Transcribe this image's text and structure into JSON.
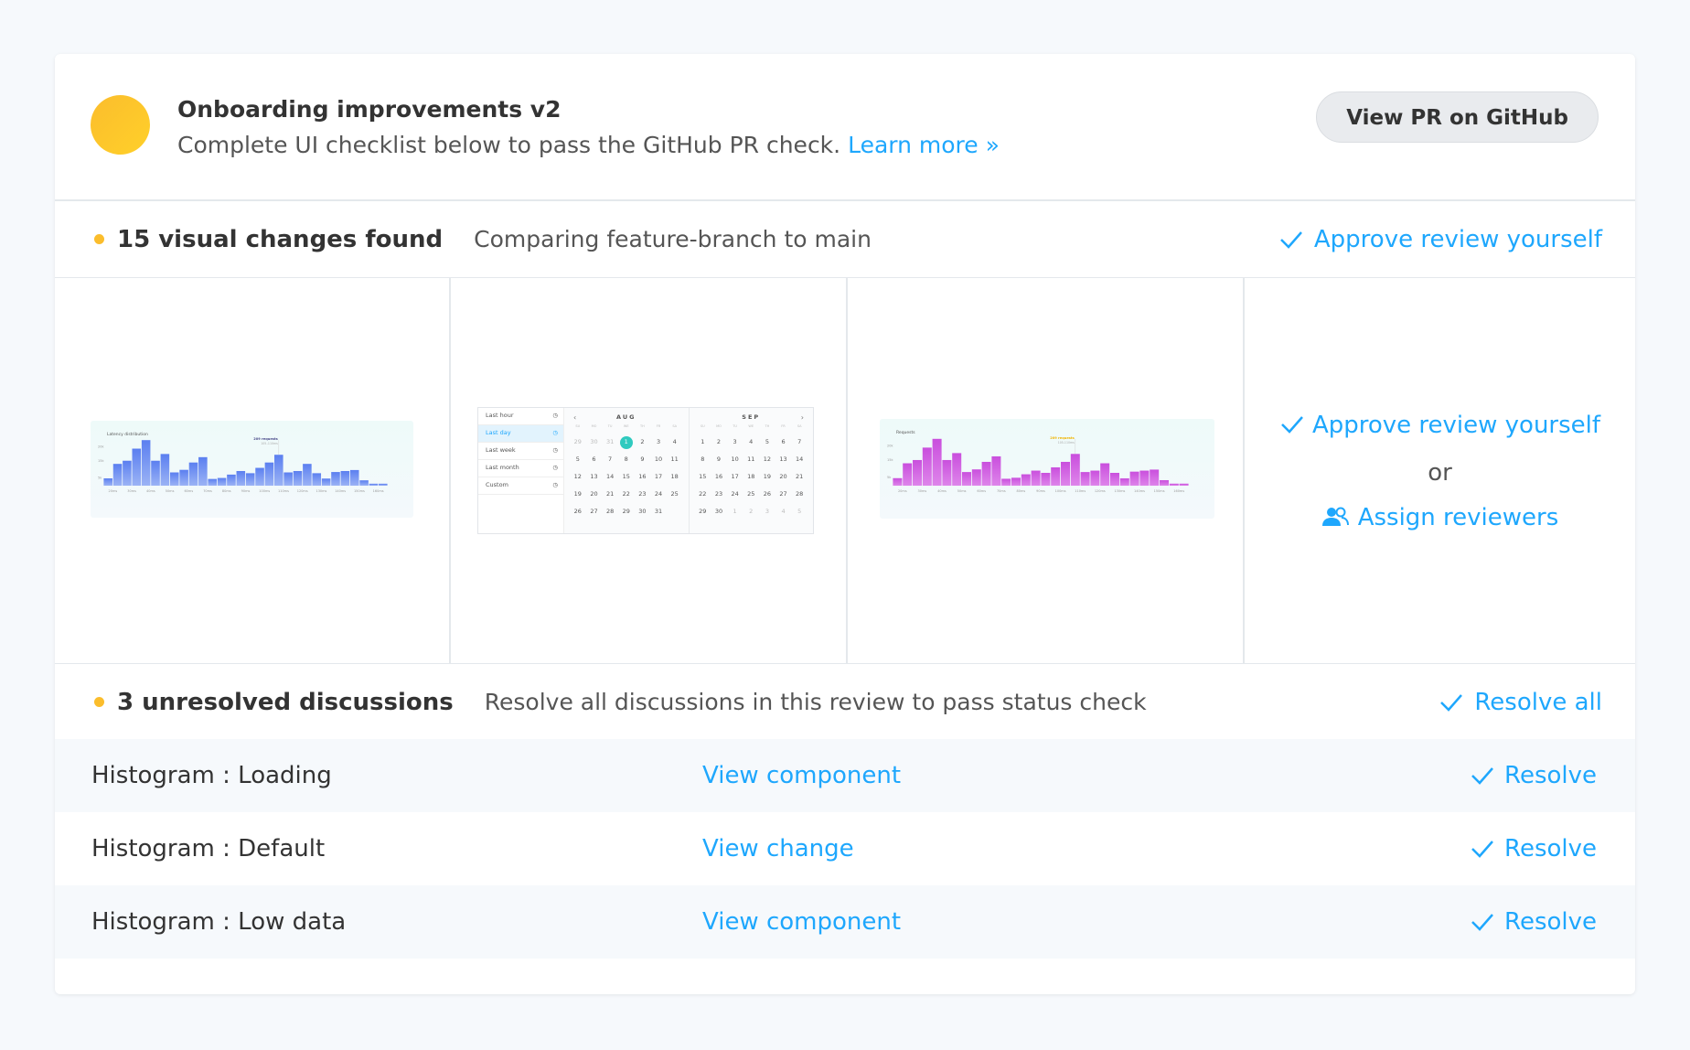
{
  "header": {
    "title": "Onboarding improvements v2",
    "subtitle": "Complete UI checklist below to pass the GitHub PR check.",
    "learn_more": "Learn more »",
    "github_button": "View PR on GitHub"
  },
  "colors": {
    "accent": "#1ea7fd",
    "status_pending": "#fbbd2c",
    "bar_blue": "#6c8ef5",
    "bar_purple": "#d25fe0"
  },
  "changes": {
    "count_label": "15 visual changes found",
    "compare_label": "Comparing feature-branch to main",
    "approve_label": "Approve review yourself",
    "thumbnails": [
      {
        "title": "Latency distribution",
        "tooltip": "209 requests",
        "tooltip_sub": "105–110ms",
        "y_ticks": [
          "20k",
          "15k",
          "5k"
        ],
        "x_ticks": [
          "20ms",
          "30ms",
          "40ms",
          "50ms",
          "60ms",
          "70ms",
          "80ms",
          "90ms",
          "100ms",
          "110ms",
          "120ms",
          "130ms",
          "140ms",
          "150ms",
          "160ms"
        ],
        "values": [
          3.7,
          11,
          12.6,
          18.7,
          23,
          12.6,
          16,
          6.7,
          8,
          11.7,
          14.4,
          3.4,
          3.9,
          5.6,
          7.4,
          6.3,
          9,
          11.7,
          15.6,
          6.7,
          7.4,
          11,
          6.3,
          3.6,
          6.9,
          7.4,
          7.9,
          2.7,
          1,
          1
        ]
      },
      {
        "options": [
          "Last hour",
          "Last day",
          "Last week",
          "Last month",
          "Custom"
        ],
        "selected": "Last day",
        "months": [
          {
            "name": "AUG",
            "dow": [
              "SU",
              "MO",
              "TU",
              "WE",
              "TH",
              "FR",
              "SA"
            ],
            "days": [
              "29",
              "30",
              "31",
              "1",
              "2",
              "3",
              "4",
              "5",
              "6",
              "7",
              "8",
              "9",
              "10",
              "11",
              "12",
              "13",
              "14",
              "15",
              "16",
              "17",
              "18",
              "19",
              "20",
              "21",
              "22",
              "23",
              "24",
              "25",
              "26",
              "27",
              "28",
              "29",
              "30",
              "31"
            ],
            "muted": [
              "29",
              "30",
              "31"
            ],
            "today": "1"
          },
          {
            "name": "SEP",
            "dow": [
              "SU",
              "MO",
              "TU",
              "WE",
              "TH",
              "FR",
              "SA"
            ],
            "days": [
              "1",
              "2",
              "3",
              "4",
              "5",
              "6",
              "7",
              "8",
              "9",
              "10",
              "11",
              "12",
              "13",
              "14",
              "15",
              "16",
              "17",
              "18",
              "19",
              "20",
              "21",
              "22",
              "23",
              "24",
              "25",
              "26",
              "27",
              "28",
              "29",
              "30",
              "1",
              "2",
              "3",
              "4",
              "5"
            ],
            "muted_from": 30
          }
        ]
      },
      {
        "title": "Requests",
        "tooltip": "209 requests",
        "tooltip_sub": "105-110ms",
        "y_ticks": [
          "20k",
          "15k",
          "5k"
        ],
        "x_ticks": [
          "20ms",
          "30ms",
          "40ms",
          "50ms",
          "60ms",
          "70ms",
          "80ms",
          "90ms",
          "100ms",
          "110ms",
          "120ms",
          "130ms",
          "140ms",
          "150ms",
          "160ms"
        ],
        "values": [
          3.7,
          11,
          12.6,
          18.7,
          23,
          12.6,
          16,
          6.7,
          8,
          11.7,
          14.4,
          3.4,
          3.9,
          5.6,
          7.4,
          6.3,
          9,
          11.7,
          15.6,
          6.7,
          7.4,
          11,
          6.3,
          3.6,
          6.9,
          7.4,
          7.9,
          2.7,
          1,
          1
        ]
      }
    ],
    "side": {
      "approve": "Approve review yourself",
      "or": "or",
      "assign": "Assign reviewers"
    }
  },
  "discussions": {
    "count_label": "3 unresolved discussions",
    "hint": "Resolve all discussions in this review to pass status check",
    "resolve_all": "Resolve all",
    "rows": [
      {
        "name": "Histogram : Loading",
        "link": "View component",
        "resolve": "Resolve"
      },
      {
        "name": "Histogram : Default",
        "link": "View change",
        "resolve": "Resolve"
      },
      {
        "name": "Histogram : Low data",
        "link": "View component",
        "resolve": "Resolve"
      }
    ]
  }
}
